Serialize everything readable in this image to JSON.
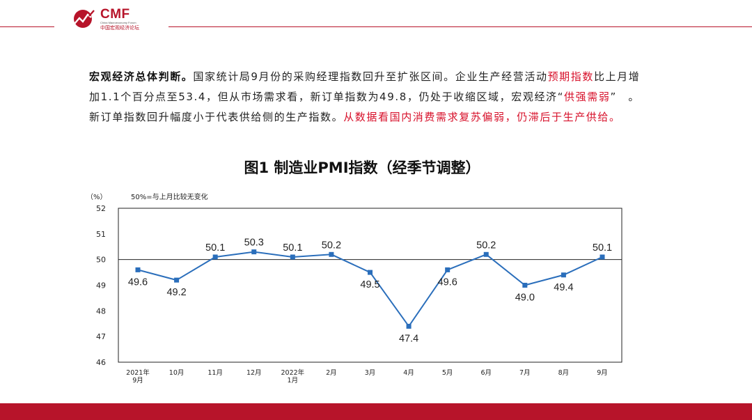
{
  "brand": {
    "name": "CMF",
    "subtitle": "China Macroeconomy Forum",
    "chinese_name": "中国宏观经济论坛",
    "color": "#b7142a"
  },
  "paragraph": {
    "lead": "宏观经济总体判断。",
    "text1": "国家统计局9月份的采购经理指数回升至扩张区间。企业生产经营活动",
    "highlight1": "预期指数",
    "text2": "比上月增加1.1个百分点至53.4，但从市场需求看，新订单指数为49.8，仍处于收缩区域，宏观经济“",
    "highlight2": "供强需弱",
    "text3": "”　。新订单指数回升幅度小于代表供给侧的生产指数。",
    "highlight3": "从数据看国内消费需求复苏偏弱，仍滞后于生产供给。",
    "highlight_color": "#d7102a"
  },
  "chart_data": {
    "type": "line",
    "title": "图1  制造业PMI指数（经季节调整）",
    "ylabel": "（%）",
    "annotation": "50%=与上月比较无变化",
    "ylim": [
      46,
      52
    ],
    "yticks": [
      "46",
      "47",
      "48",
      "49",
      "50",
      "51",
      "52"
    ],
    "reference_line": 50,
    "categories": [
      [
        "2021年",
        "9月"
      ],
      [
        "10月"
      ],
      [
        "11月"
      ],
      [
        "12月"
      ],
      [
        "2022年",
        "1月"
      ],
      [
        "2月"
      ],
      [
        "3月"
      ],
      [
        "4月"
      ],
      [
        "5月"
      ],
      [
        "6月"
      ],
      [
        "7月"
      ],
      [
        "8月"
      ],
      [
        "9月"
      ]
    ],
    "values": [
      49.6,
      49.2,
      50.1,
      50.3,
      50.1,
      50.2,
      49.5,
      47.4,
      49.6,
      50.2,
      49.0,
      49.4,
      50.1
    ],
    "value_labels": [
      "49.6",
      "49.2",
      "50.1",
      "50.3",
      "50.1",
      "50.2",
      "49.5",
      "47.4",
      "49.6",
      "50.2",
      "49.0",
      "49.4",
      "50.1"
    ],
    "label_positions": [
      "below",
      "below",
      "above",
      "above",
      "above",
      "above",
      "below",
      "below",
      "below",
      "above",
      "below",
      "below",
      "above"
    ],
    "line_color": "#2a6ebb"
  }
}
